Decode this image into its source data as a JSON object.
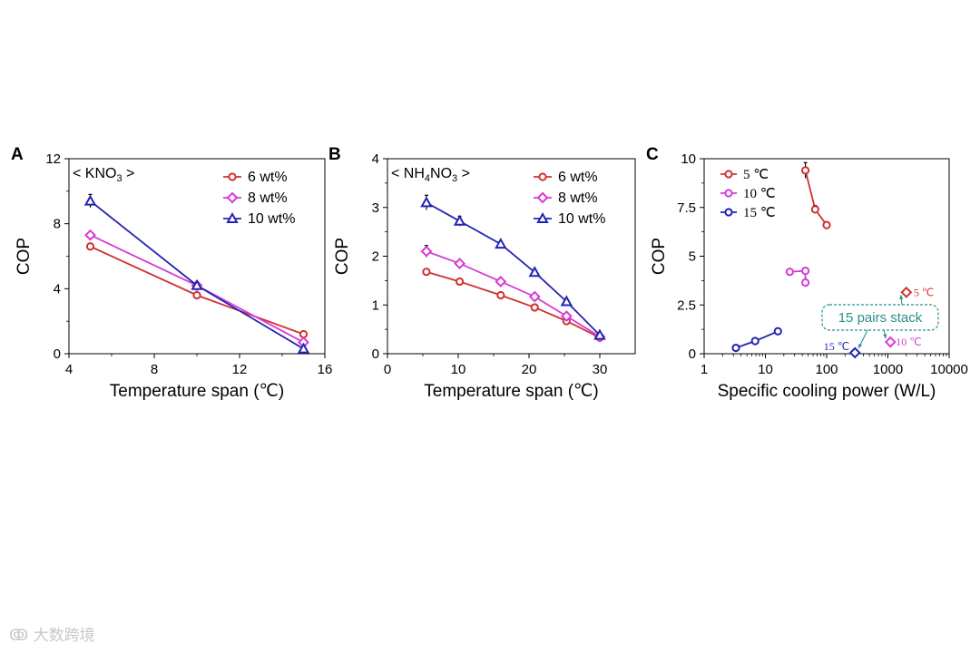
{
  "watermark": {
    "text": "大数跨境"
  },
  "chart_data": [
    {
      "panel": "A",
      "type": "line",
      "annotation": "< KNO3 >",
      "xlabel": "Temperature span (℃)",
      "ylabel": "COP",
      "xlim": [
        4,
        16
      ],
      "ylim": [
        0,
        12
      ],
      "xticks": [
        4,
        8,
        12,
        16
      ],
      "yticks": [
        0,
        4,
        8,
        12
      ],
      "legend_position": "top-right",
      "series": [
        {
          "name": "6 wt%",
          "color": "#d03030",
          "marker": "circle",
          "x": [
            5,
            10,
            15
          ],
          "y": [
            6.6,
            3.6,
            1.2
          ],
          "err": [
            0,
            0,
            0
          ]
        },
        {
          "name": "8 wt%",
          "color": "#d63ad6",
          "marker": "diamond",
          "x": [
            5,
            10,
            15
          ],
          "y": [
            7.3,
            4.2,
            0.7
          ],
          "err": [
            0,
            0,
            0
          ]
        },
        {
          "name": "10 wt%",
          "color": "#2323b4",
          "marker": "triangle",
          "x": [
            5,
            10,
            15
          ],
          "y": [
            9.4,
            4.2,
            0.3
          ],
          "err": [
            0.4,
            0,
            0
          ]
        }
      ]
    },
    {
      "panel": "B",
      "type": "line",
      "annotation": "< NH4NO3 >",
      "xlabel": "Temperature span (℃)",
      "ylabel": "COP",
      "xlim": [
        0,
        35
      ],
      "ylim": [
        0,
        4
      ],
      "xticks": [
        0,
        10,
        20,
        30
      ],
      "yticks": [
        0,
        1,
        2,
        3,
        4
      ],
      "legend_position": "top-right",
      "series": [
        {
          "name": "6 wt%",
          "color": "#d03030",
          "marker": "circle",
          "x": [
            5.5,
            10.2,
            16,
            20.8,
            25.3,
            30
          ],
          "y": [
            1.68,
            1.48,
            1.2,
            0.95,
            0.67,
            0.33
          ],
          "err": [
            0.06,
            0.04,
            0.03,
            0.03,
            0.03,
            0.02
          ]
        },
        {
          "name": "8 wt%",
          "color": "#d63ad6",
          "marker": "diamond",
          "x": [
            5.5,
            10.2,
            16,
            20.8,
            25.3,
            30
          ],
          "y": [
            2.1,
            1.85,
            1.48,
            1.17,
            0.77,
            0.35
          ],
          "err": [
            0.12,
            0.07,
            0.05,
            0.04,
            0.03,
            0.02
          ]
        },
        {
          "name": "10 wt%",
          "color": "#2323b4",
          "marker": "triangle",
          "x": [
            5.5,
            10.2,
            16,
            20.8,
            25.3,
            30
          ],
          "y": [
            3.1,
            2.72,
            2.25,
            1.67,
            1.07,
            0.38
          ],
          "err": [
            0.15,
            0.1,
            0.05,
            0.05,
            0.03,
            0.02
          ]
        }
      ]
    },
    {
      "panel": "C",
      "type": "scatter",
      "xscale": "log",
      "xlabel": "Specific cooling power (W/L)",
      "ylabel": "COP",
      "xlim": [
        1,
        10000
      ],
      "ylim": [
        0,
        10
      ],
      "xticks": [
        1,
        10,
        100,
        1000,
        10000
      ],
      "xticklabels": [
        "1",
        "10",
        "100",
        "1000",
        "10000"
      ],
      "yticks": [
        0,
        2.5,
        5,
        7.5,
        10
      ],
      "yticklabels": [
        "0",
        "2.5",
        "5",
        "7.5",
        "10"
      ],
      "legend_position": "top-left",
      "series": [
        {
          "name": "5 ℃",
          "color": "#d03030",
          "marker": "circle",
          "x": [
            45,
            65,
            100
          ],
          "y": [
            9.4,
            7.4,
            6.6
          ],
          "err": [
            0.4,
            0.2,
            0.15
          ]
        },
        {
          "name": "10 ℃",
          "color": "#d63ad6",
          "marker": "circle",
          "x": [
            25,
            45,
            45
          ],
          "y": [
            4.2,
            4.25,
            3.65
          ],
          "err": [
            0.15,
            0.15,
            0.15
          ]
        },
        {
          "name": "15 ℃",
          "color": "#2323b4",
          "marker": "circle",
          "x": [
            3.3,
            6.8,
            16
          ],
          "y": [
            0.3,
            0.65,
            1.15
          ],
          "err": [
            0,
            0,
            0
          ]
        }
      ],
      "stack_points": [
        {
          "label": "5 ℃",
          "color": "#d03030",
          "x": 2000,
          "y": 3.15
        },
        {
          "label": "10 ℃",
          "color": "#d63ad6",
          "x": 1100,
          "y": 0.6
        },
        {
          "label": "15 ℃",
          "color": "#2323b4",
          "x": 290,
          "y": 0.05
        }
      ],
      "stack_annotation": "15 pairs stack"
    }
  ]
}
